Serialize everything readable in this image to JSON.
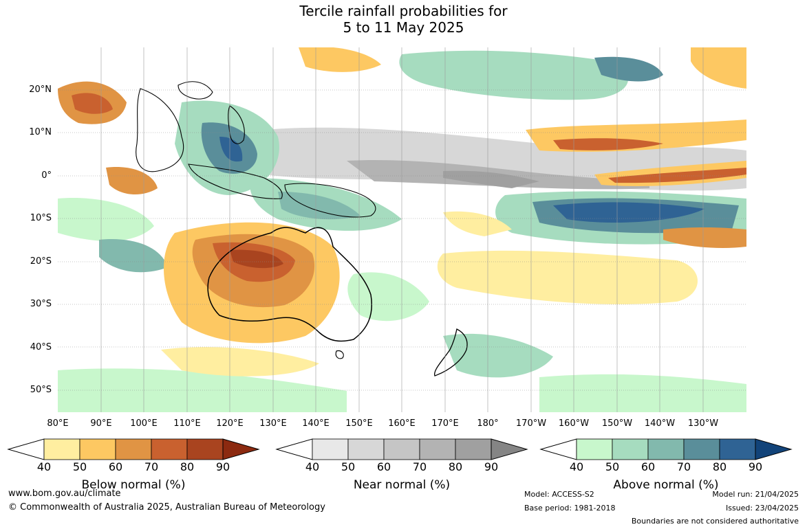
{
  "header": {
    "title_line1": "Tercile rainfall probabilities for",
    "title_line2": "5 to 11 May 2025"
  },
  "map": {
    "lat_labels": [
      "20°N",
      "10°N",
      "0°",
      "10°S",
      "20°S",
      "30°S",
      "40°S",
      "50°S"
    ],
    "lon_labels": [
      "80°E",
      "90°E",
      "100°E",
      "110°E",
      "120°E",
      "130°E",
      "140°E",
      "150°E",
      "160°E",
      "170°E",
      "180°",
      "170°W",
      "160°W",
      "150°W",
      "140°W",
      "130°W"
    ]
  },
  "legends": [
    {
      "title": "Below normal (%)",
      "ticks": [
        "40",
        "50",
        "60",
        "70",
        "80",
        "90"
      ],
      "colors": [
        "#ffeea0",
        "#fdc862",
        "#e09444",
        "#c9612f",
        "#a9441f",
        "#8c2a10"
      ]
    },
    {
      "title": "Near normal (%)",
      "ticks": [
        "40",
        "50",
        "60",
        "70",
        "80",
        "90"
      ],
      "colors": [
        "#e8e8e8",
        "#d7d7d7",
        "#c5c5c5",
        "#b3b3b3",
        "#a0a0a0",
        "#858585"
      ]
    },
    {
      "title": "Above normal (%)",
      "ticks": [
        "40",
        "50",
        "60",
        "70",
        "80",
        "90"
      ],
      "colors": [
        "#c8f7cc",
        "#a6dcbf",
        "#82b9ad",
        "#5a8e9a",
        "#2f6394",
        "#124379"
      ]
    }
  ],
  "footer": {
    "url": "www.bom.gov.au/climate",
    "copyright": "© Commonwealth of Australia 2025, Australian Bureau of Meteorology",
    "model": "Model: ACCESS-S2",
    "base_period": "Base period: 1981-2018",
    "model_run": "Model run: 21/04/2025",
    "issued": "Issued: 23/04/2025",
    "disclaimer": "Boundaries are not considered authoritative"
  }
}
